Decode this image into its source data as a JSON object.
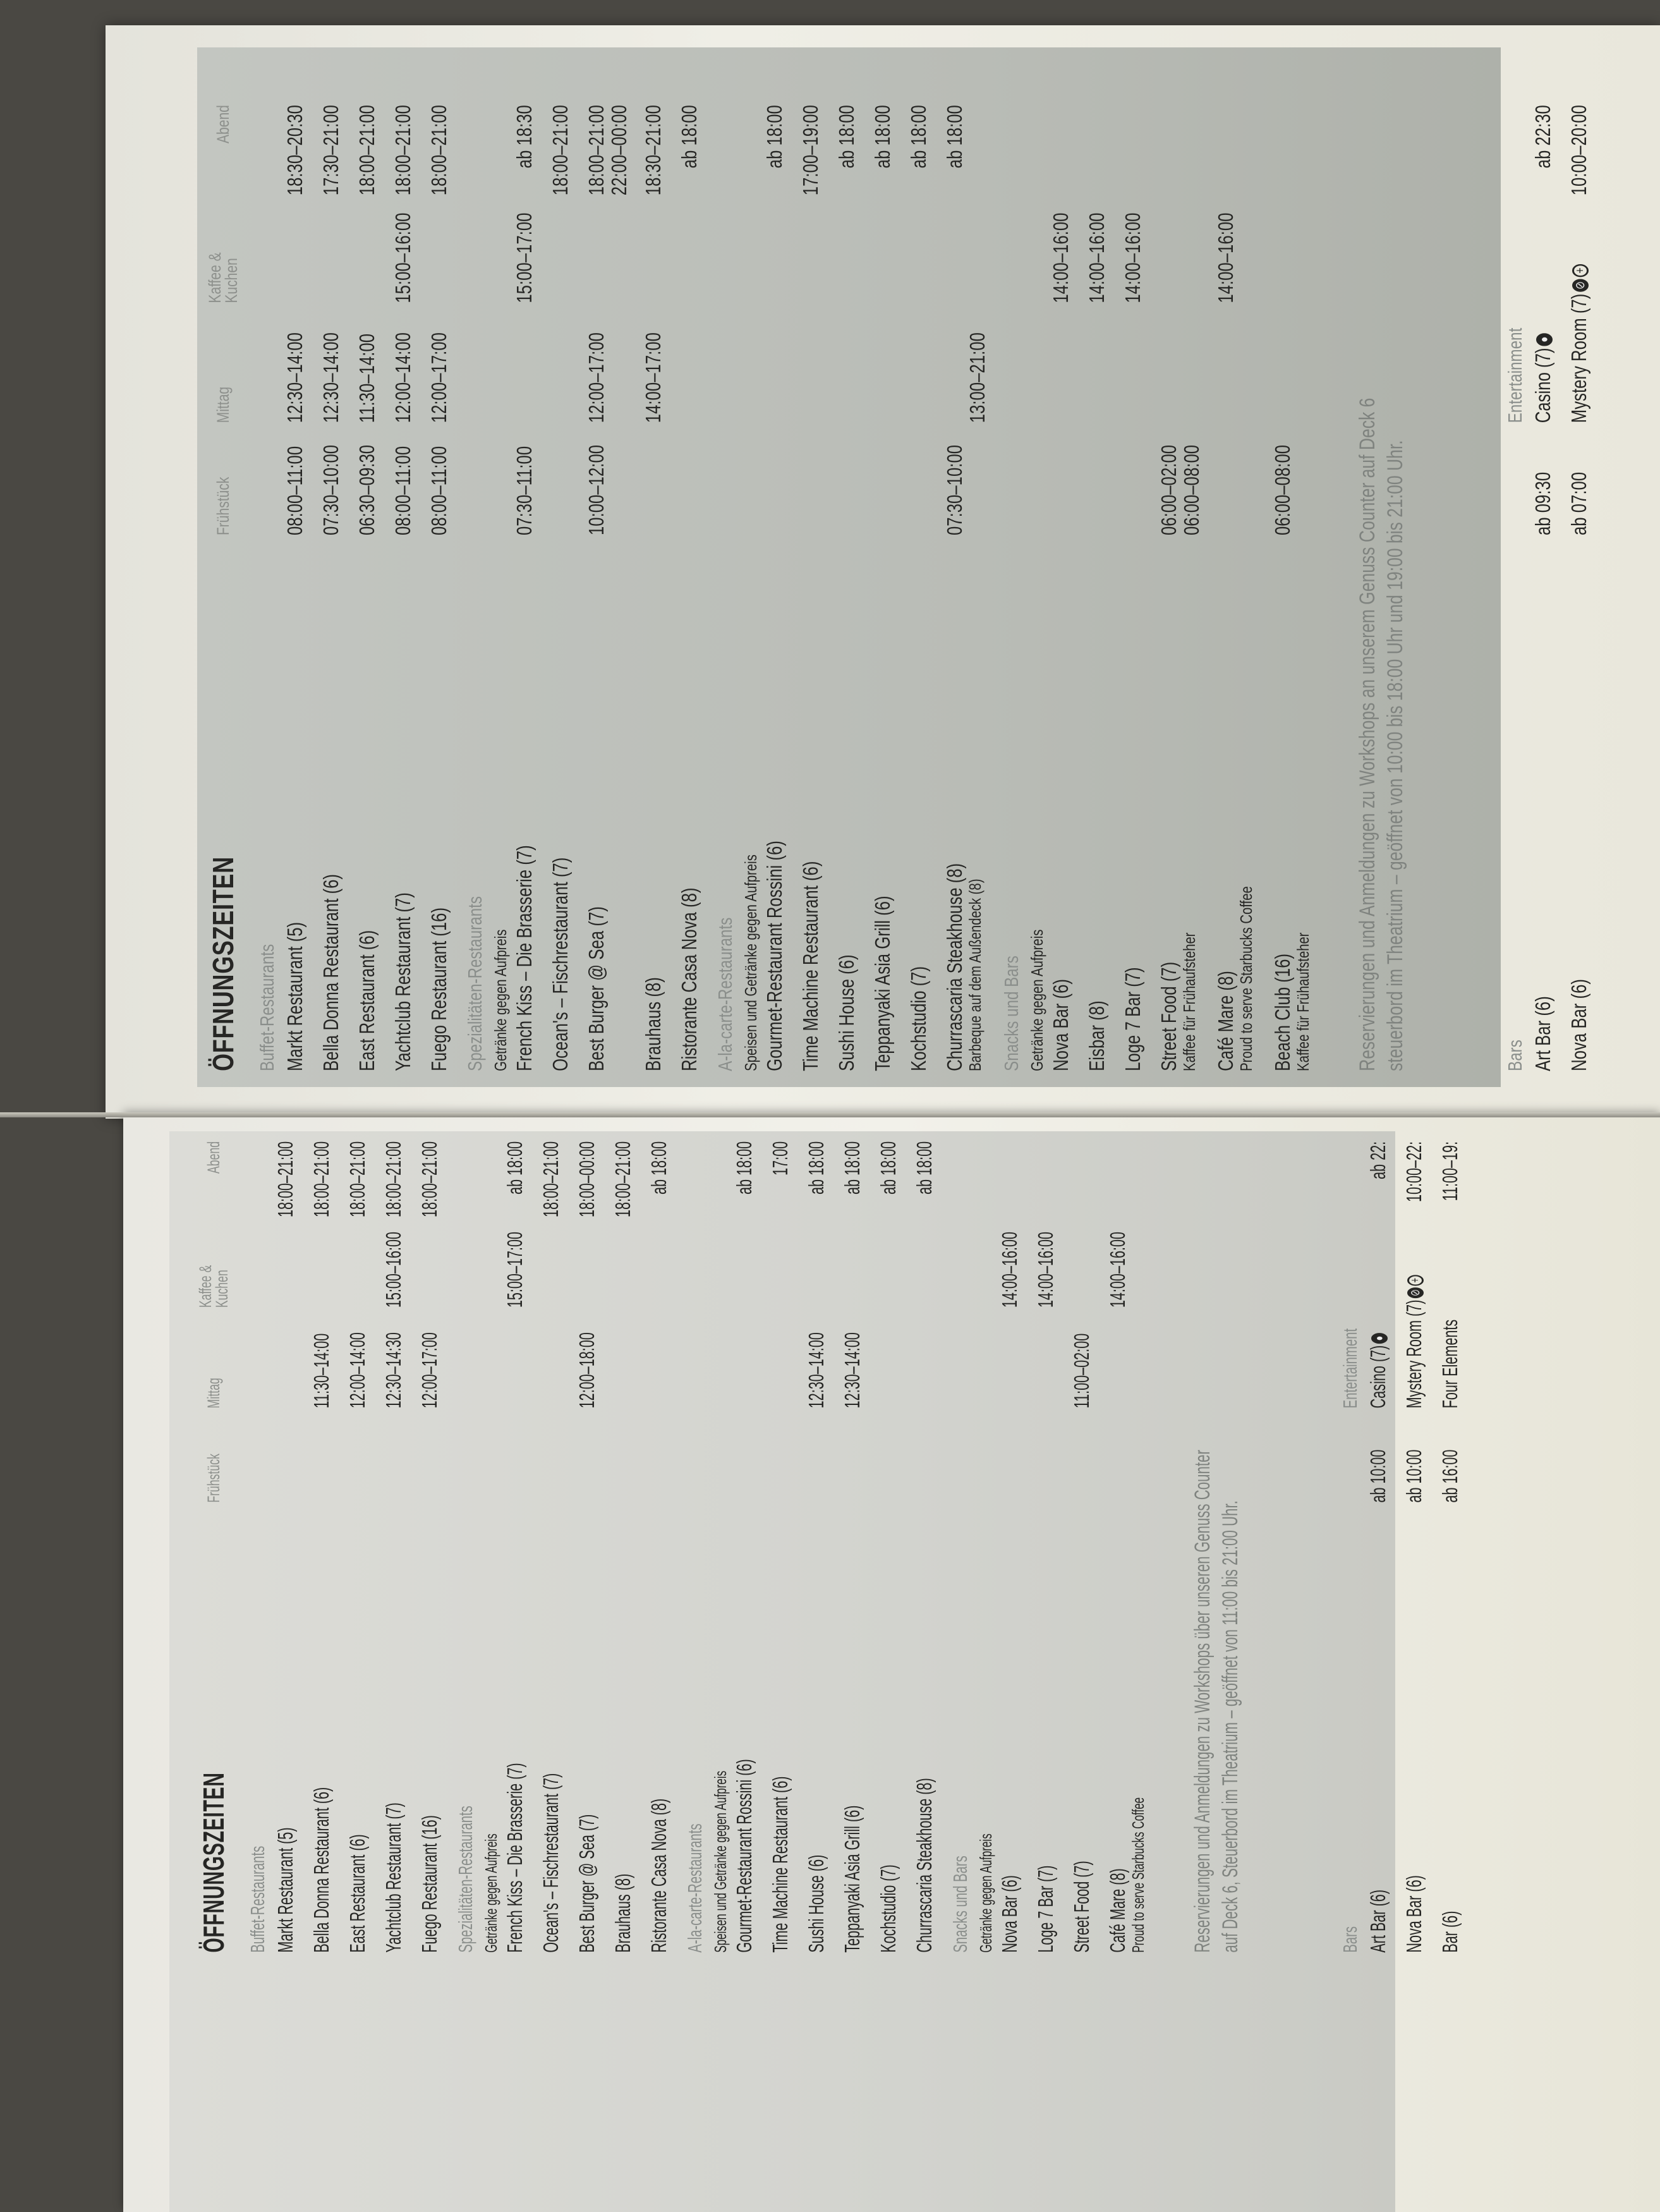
{
  "pages": [
    {
      "title": "ÖFFNUNGSZEITEN",
      "columns": [
        "Frühstück",
        "Mittag",
        "Kaffee &\nKuchen",
        "Abend"
      ],
      "sections": [
        {
          "label": "Buffet-Restaurants",
          "note": "",
          "rows": [
            {
              "name": "Markt Restaurant (5)",
              "note": "",
              "times": [
                "",
                "",
                "",
                "18:00–21:00"
              ]
            },
            {
              "name": "Bella Donna Restaurant (6)",
              "note": "",
              "times": [
                "",
                "11:30–14:00",
                "",
                "18:00–21:00"
              ]
            },
            {
              "name": "East Restaurant (6)",
              "note": "",
              "times": [
                "",
                "12:00–14:00",
                "",
                "18:00–21:00"
              ]
            },
            {
              "name": "Yachtclub Restaurant (7)",
              "note": "",
              "times": [
                "",
                "12:30–14:30",
                "15:00–16:00",
                "18:00–21:00"
              ]
            },
            {
              "name": "Fuego Restaurant (16)",
              "note": "",
              "times": [
                "",
                "12:00–17:00",
                "",
                "18:00–21:00"
              ]
            }
          ]
        },
        {
          "label": "Spezialitäten-Restaurants",
          "note": "Getränke gegen Aufpreis",
          "rows": [
            {
              "name": "French Kiss – Die Brasserie (7)",
              "note": "",
              "times": [
                "",
                "",
                "15:00–17:00",
                "ab 18:00"
              ]
            },
            {
              "name": "Ocean's – Fischrestaurant (7)",
              "note": "",
              "times": [
                "",
                "",
                "",
                "18:00–21:00"
              ]
            },
            {
              "name": "Best Burger @ Sea (7)",
              "note": "",
              "times": [
                "",
                "12:00–18:00",
                "",
                "18:00–00:00"
              ]
            },
            {
              "name": "Brauhaus (8)",
              "note": "",
              "times": [
                "",
                "",
                "",
                "18:00–21:00"
              ]
            },
            {
              "name": "Ristorante Casa Nova (8)",
              "note": "",
              "times": [
                "",
                "",
                "",
                "ab 18:00"
              ]
            }
          ]
        },
        {
          "label": "A-la-carte-Restaurants",
          "note": "Speisen und Getränke gegen Aufpreis",
          "rows": [
            {
              "name": "Gourmet-Restaurant Rossini (6)",
              "note": "",
              "times": [
                "",
                "",
                "",
                "ab 18:00"
              ]
            },
            {
              "name": "Time Machine Restaurant (6)",
              "note": "",
              "times": [
                "",
                "",
                "",
                "17:00"
              ]
            },
            {
              "name": "Sushi House (6)",
              "note": "",
              "times": [
                "",
                "12:30–14:00",
                "",
                "ab 18:00"
              ]
            },
            {
              "name": "Teppanyaki Asia Grill (6)",
              "note": "",
              "times": [
                "",
                "12:30–14:00",
                "",
                "ab 18:00"
              ]
            },
            {
              "name": "Kochstudio (7)",
              "note": "",
              "times": [
                "",
                "",
                "",
                "ab 18:00"
              ]
            },
            {
              "name": "Churrascaria Steakhouse (8)",
              "note": "",
              "times": [
                "",
                "",
                "",
                "ab 18:00"
              ]
            }
          ]
        },
        {
          "label": "Snacks und Bars",
          "note": "Getränke gegen Aufpreis",
          "rows": [
            {
              "name": "Nova Bar (6)",
              "note": "",
              "times": [
                "",
                "",
                "14:00–16:00",
                ""
              ]
            },
            {
              "name": "Loge 7 Bar (7)",
              "note": "",
              "times": [
                "",
                "",
                "14:00–16:00",
                ""
              ]
            },
            {
              "name": "Street Food (7)",
              "note": "",
              "times": [
                "",
                "11:00–02:00",
                "",
                ""
              ]
            },
            {
              "name": "Café Mare (8)",
              "note": "Proud to serve Starbucks Coffee",
              "times": [
                "",
                "",
                "14:00–16:00",
                ""
              ]
            }
          ]
        }
      ],
      "reservation": [
        "Reservierungen und Anmeldungen zu Workshops über unseren Genuss Counter",
        "auf Deck 6, Steuerbord im Theatrium – geöffnet von 11:00 bis 21:00 Uhr."
      ],
      "bars": {
        "label": "Bars",
        "items": [
          {
            "name": "Art Bar (6)",
            "time": "ab 10:00"
          },
          {
            "name": "Nova Bar (6)",
            "time": "ab 10:00"
          },
          {
            "name": "Bar (6)",
            "time": "ab 16:00"
          }
        ]
      },
      "entertainment": {
        "label": "Entertainment",
        "items": [
          {
            "name": "Casino (7)",
            "icons": [
              "dot-circle-icon"
            ],
            "time": "ab 22:"
          },
          {
            "name": "Mystery Room (7)",
            "icons": [
              "slashed-circle-icon",
              "plus-circle-icon"
            ],
            "time": "10:00–22:"
          },
          {
            "name": "Four Elements",
            "icons": [],
            "time": "11:00–19:"
          }
        ]
      }
    },
    {
      "title": "ÖFFNUNGSZEITEN",
      "columns": [
        "Frühstück",
        "Mittag",
        "Kaffee &\nKuchen",
        "Abend"
      ],
      "sections": [
        {
          "label": "Buffet-Restaurants",
          "note": "",
          "rows": [
            {
              "name": "Markt Restaurant (5)",
              "note": "",
              "times": [
                "08:00–11:00",
                "12:30–14:00",
                "",
                "18:30–20:30"
              ]
            },
            {
              "name": "Bella Donna Restaurant (6)",
              "note": "",
              "times": [
                "07:30–10:00",
                "12:30–14:00",
                "",
                "17:30–21:00"
              ]
            },
            {
              "name": "East Restaurant (6)",
              "note": "",
              "times": [
                "06:30–09:30",
                "11:30–14:00",
                "",
                "18:00–21:00"
              ]
            },
            {
              "name": "Yachtclub Restaurant (7)",
              "note": "",
              "times": [
                "08:00–11:00",
                "12:00–14:00",
                "15:00–16:00",
                "18:00–21:00"
              ]
            },
            {
              "name": "Fuego Restaurant (16)",
              "note": "",
              "times": [
                "08:00–11:00",
                "12:00–17:00",
                "",
                "18:00–21:00"
              ]
            }
          ]
        },
        {
          "label": "Spezialitäten-Restaurants",
          "note": "Getränke gegen Aufpreis",
          "rows": [
            {
              "name": "French Kiss – Die Brasserie (7)",
              "note": "",
              "times": [
                "07:30–11:00",
                "",
                "15:00–17:00",
                "ab 18:30"
              ]
            },
            {
              "name": "Ocean's – Fischrestaurant (7)",
              "note": "",
              "times": [
                "",
                "",
                "",
                "18:00–21:00"
              ]
            },
            {
              "name": "Best Burger @ Sea (7)",
              "note": "",
              "times": [
                "10:00–12:00",
                "12:00–17:00",
                "",
                "18:00–21:00\n22:00–00:00"
              ]
            },
            {
              "name": "Brauhaus (8)",
              "note": "",
              "times": [
                "",
                "14:00–17:00",
                "",
                "18:30–21:00"
              ]
            },
            {
              "name": "Ristorante Casa Nova (8)",
              "note": "",
              "times": [
                "",
                "",
                "",
                "ab 18:00"
              ]
            }
          ]
        },
        {
          "label": "A-la-carte-Restaurants",
          "note": "Speisen und Getränke gegen Aufpreis",
          "rows": [
            {
              "name": "Gourmet-Restaurant Rossini (6)",
              "note": "",
              "times": [
                "",
                "",
                "",
                "ab 18:00"
              ]
            },
            {
              "name": "Time Machine Restaurant (6)",
              "note": "",
              "times": [
                "",
                "",
                "",
                "17:00–19:00"
              ]
            },
            {
              "name": "Sushi House (6)",
              "note": "",
              "times": [
                "",
                "",
                "",
                "ab 18:00"
              ]
            },
            {
              "name": "Teppanyaki Asia Grill (6)",
              "note": "",
              "times": [
                "",
                "",
                "",
                "ab 18:00"
              ]
            },
            {
              "name": "Kochstudio (7)",
              "note": "",
              "times": [
                "",
                "",
                "",
                "ab 18:00"
              ]
            },
            {
              "name": "Churrascaria Steakhouse (8)",
              "note": "Barbeque auf dem Außendeck (8)",
              "times": [
                "07:30–10:00",
                "\n13:00–21:00",
                "",
                "ab 18:00"
              ]
            }
          ]
        },
        {
          "label": "Snacks und Bars",
          "note": "Getränke gegen Aufpreis",
          "rows": [
            {
              "name": "Nova Bar (6)",
              "note": "",
              "times": [
                "",
                "",
                "14:00–16:00",
                ""
              ]
            },
            {
              "name": "Eisbar (8)",
              "note": "",
              "times": [
                "",
                "",
                "14:00–16:00",
                ""
              ]
            },
            {
              "name": "Loge 7 Bar (7)",
              "note": "",
              "times": [
                "",
                "",
                "14:00–16:00",
                ""
              ]
            },
            {
              "name": "Street Food (7)",
              "note": "Kaffee für Frühaufsteher",
              "times": [
                "06:00–02:00\n06:00–08:00",
                "",
                "",
                ""
              ]
            },
            {
              "name": "Café Mare (8)",
              "note": "Proud to serve Starbucks Coffee",
              "times": [
                "",
                "",
                "14:00–16:00",
                ""
              ]
            },
            {
              "name": "Beach Club (16)",
              "note": "Kaffee für Frühaufsteher",
              "times": [
                "06:00–08:00",
                "",
                "",
                ""
              ]
            }
          ]
        }
      ],
      "reservation": [
        "Reservierungen und Anmeldungen zu Workshops an unserem Genuss Counter auf Deck 6",
        "steuerbord im Theatrium – geöffnet von 10:00 bis 18:00 Uhr und 19:00 bis 21:00 Uhr."
      ],
      "bars": {
        "label": "Bars",
        "items": [
          {
            "name": "Art Bar (6)",
            "time": "ab 09:30"
          },
          {
            "name": "Nova Bar (6)",
            "time": "ab 07:00"
          }
        ]
      },
      "entertainment": {
        "label": "Entertainment",
        "items": [
          {
            "name": "Casino (7)",
            "icons": [
              "dot-circle-icon"
            ],
            "time": "ab 22:30"
          },
          {
            "name": "Mystery Room (7)",
            "icons": [
              "slashed-circle-icon",
              "plus-circle-icon"
            ],
            "time": "10:00–20:00"
          }
        ]
      }
    }
  ]
}
